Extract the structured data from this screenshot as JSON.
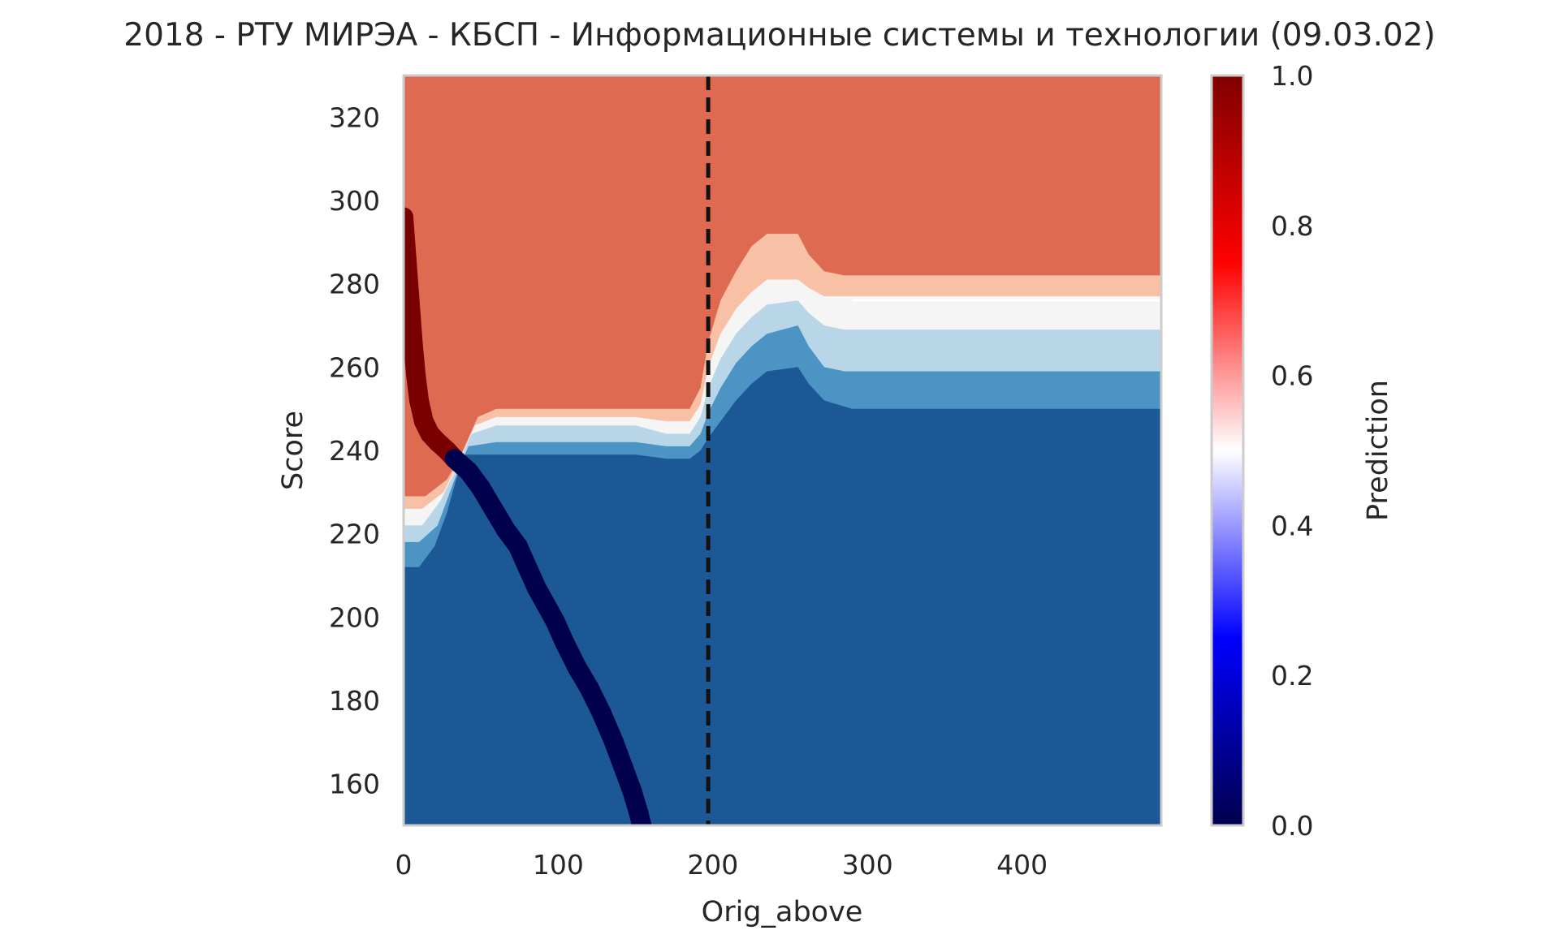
{
  "chart_data": {
    "type": "heatmap",
    "title": "2018 - РТУ МИРЭА - КБСП - Информационные системы и технологии (09.03.02)",
    "xlabel": "Orig_above",
    "ylabel": "Score",
    "xlim": [
      0,
      490
    ],
    "ylim": [
      150,
      330
    ],
    "xticks": [
      0,
      100,
      200,
      300,
      400
    ],
    "yticks": [
      160,
      180,
      200,
      220,
      240,
      260,
      280,
      300,
      320
    ],
    "grid": false,
    "colorbar": {
      "label": "Prediction",
      "range": [
        0.0,
        1.0
      ],
      "ticks": [
        "0.0",
        "0.2",
        "0.4",
        "0.6",
        "0.8",
        "1.0"
      ],
      "colormap": "seismic",
      "stops": [
        "#00004c",
        "#0000ff",
        "#ffffff",
        "#ff0000",
        "#800000"
      ]
    },
    "contour_levels": [
      {
        "range": [
          0.0,
          0.167
        ],
        "color": "#1c5796"
      },
      {
        "range": [
          0.167,
          0.333
        ],
        "color": "#4b94c4"
      },
      {
        "range": [
          0.333,
          0.5
        ],
        "color": "#b8d6e8"
      },
      {
        "range": [
          0.5,
          0.667
        ],
        "color": "#f5f5f5"
      },
      {
        "range": [
          0.667,
          0.833
        ],
        "color": "#f8c1a6"
      },
      {
        "range": [
          0.833,
          1.0
        ],
        "color": "#de6a52"
      },
      {
        "range": [
          1.0,
          1.0
        ],
        "color": "#9a1128"
      }
    ],
    "boundaries": [
      {
        "name": "b1",
        "points": [
          [
            0,
            212
          ],
          [
            10,
            212
          ],
          [
            20,
            217
          ],
          [
            28,
            225
          ],
          [
            34,
            233
          ],
          [
            40,
            239
          ],
          [
            60,
            239
          ],
          [
            100,
            239
          ],
          [
            150,
            239
          ],
          [
            170,
            238
          ],
          [
            185,
            238
          ],
          [
            192,
            240
          ],
          [
            197,
            243
          ],
          [
            205,
            247
          ],
          [
            215,
            252
          ],
          [
            225,
            256
          ],
          [
            235,
            259
          ],
          [
            255,
            260
          ],
          [
            262,
            256
          ],
          [
            272,
            252
          ],
          [
            290,
            250
          ],
          [
            340,
            250
          ],
          [
            490,
            250
          ]
        ]
      },
      {
        "name": "b2",
        "points": [
          [
            0,
            218
          ],
          [
            10,
            218
          ],
          [
            22,
            222
          ],
          [
            30,
            230
          ],
          [
            36,
            236
          ],
          [
            42,
            241
          ],
          [
            60,
            242
          ],
          [
            100,
            242
          ],
          [
            150,
            242
          ],
          [
            170,
            241
          ],
          [
            185,
            241
          ],
          [
            192,
            244
          ],
          [
            197,
            249
          ],
          [
            205,
            255
          ],
          [
            215,
            261
          ],
          [
            225,
            265
          ],
          [
            235,
            268
          ],
          [
            255,
            270
          ],
          [
            262,
            265
          ],
          [
            272,
            260
          ],
          [
            285,
            259
          ],
          [
            340,
            259
          ],
          [
            490,
            259
          ]
        ]
      },
      {
        "name": "b3",
        "points": [
          [
            0,
            222
          ],
          [
            12,
            222
          ],
          [
            24,
            228
          ],
          [
            32,
            234
          ],
          [
            38,
            239
          ],
          [
            44,
            244
          ],
          [
            60,
            246
          ],
          [
            100,
            246
          ],
          [
            150,
            246
          ],
          [
            170,
            244
          ],
          [
            185,
            244
          ],
          [
            192,
            248
          ],
          [
            197,
            255
          ],
          [
            205,
            262
          ],
          [
            215,
            268
          ],
          [
            225,
            272
          ],
          [
            235,
            275
          ],
          [
            255,
            276
          ],
          [
            262,
            273
          ],
          [
            272,
            270
          ],
          [
            285,
            269
          ],
          [
            340,
            269
          ],
          [
            490,
            269
          ]
        ]
      },
      {
        "name": "b4",
        "points": [
          [
            0,
            226
          ],
          [
            12,
            226
          ],
          [
            26,
            230
          ],
          [
            34,
            236
          ],
          [
            40,
            241
          ],
          [
            46,
            246
          ],
          [
            60,
            248
          ],
          [
            100,
            248
          ],
          [
            150,
            248
          ],
          [
            170,
            247
          ],
          [
            185,
            247
          ],
          [
            192,
            251
          ],
          [
            197,
            260
          ],
          [
            205,
            268
          ],
          [
            215,
            274
          ],
          [
            225,
            278
          ],
          [
            235,
            281
          ],
          [
            255,
            281
          ],
          [
            262,
            279
          ],
          [
            272,
            277
          ],
          [
            285,
            277
          ],
          [
            340,
            277
          ],
          [
            490,
            277
          ]
        ]
      },
      {
        "name": "b5",
        "points": [
          [
            0,
            229
          ],
          [
            14,
            229
          ],
          [
            28,
            233
          ],
          [
            36,
            238
          ],
          [
            42,
            243
          ],
          [
            48,
            248
          ],
          [
            60,
            250
          ],
          [
            100,
            250
          ],
          [
            150,
            250
          ],
          [
            170,
            250
          ],
          [
            185,
            250
          ],
          [
            192,
            255
          ],
          [
            197,
            266
          ],
          [
            205,
            276
          ],
          [
            215,
            283
          ],
          [
            225,
            289
          ],
          [
            235,
            292
          ],
          [
            255,
            292
          ],
          [
            262,
            287
          ],
          [
            272,
            283
          ],
          [
            285,
            282
          ],
          [
            340,
            282
          ],
          [
            490,
            282
          ]
        ]
      }
    ],
    "series": [
      {
        "color": "#7a0000",
        "points": [
          [
            0,
            296
          ],
          [
            2,
            286
          ],
          [
            4,
            276
          ],
          [
            6,
            266
          ],
          [
            8,
            258
          ],
          [
            10,
            252
          ],
          [
            13,
            247
          ],
          [
            17,
            244
          ],
          [
            22,
            242
          ],
          [
            28,
            240
          ],
          [
            33,
            238
          ]
        ]
      },
      {
        "color": "#00004c",
        "points": [
          [
            33,
            238
          ],
          [
            42,
            235
          ],
          [
            50,
            231
          ],
          [
            58,
            226
          ],
          [
            66,
            221
          ],
          [
            74,
            217
          ],
          [
            80,
            212
          ],
          [
            86,
            207
          ],
          [
            92,
            203
          ],
          [
            98,
            199
          ],
          [
            104,
            194
          ],
          [
            112,
            188
          ],
          [
            120,
            183
          ],
          [
            128,
            177
          ],
          [
            136,
            170
          ],
          [
            142,
            164
          ],
          [
            148,
            158
          ],
          [
            152,
            153
          ],
          [
            154,
            150
          ]
        ]
      }
    ],
    "vline": {
      "x": 197,
      "style": "dashed",
      "color": "#111111"
    }
  }
}
